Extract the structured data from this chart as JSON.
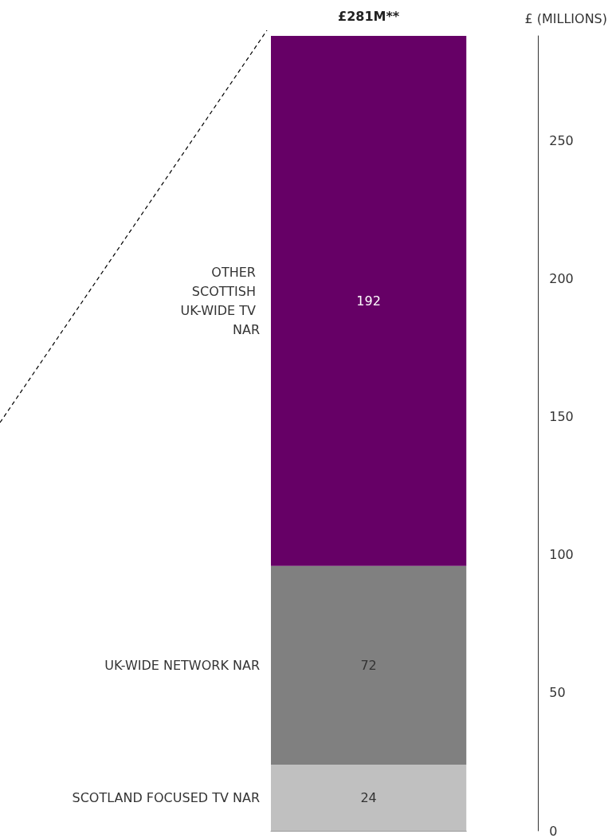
{
  "chart_data": {
    "type": "bar",
    "stacked": true,
    "categories": [
      null
    ],
    "series": [
      {
        "name": "SCOTLAND FOCUSED TV NAR",
        "color": "#c0c0c0",
        "values": [
          24
        ],
        "value_labels": [
          "24"
        ]
      },
      {
        "name": "UK-WIDE NETWORK NAR",
        "color": "#808080",
        "values": [
          72
        ],
        "value_labels": [
          "72"
        ]
      },
      {
        "name": "OTHER SCOTTISH UK-WIDE TV NAR",
        "color": "#660066",
        "values": [
          192
        ],
        "value_labels": [
          "192"
        ]
      }
    ],
    "annotations": [
      "£281M**"
    ],
    "ylabel": "£ (MILLIONS)",
    "ylim": [
      0,
      288
    ],
    "yticks": [
      0,
      50,
      100,
      150,
      200,
      250
    ],
    "grid": false,
    "legend": false
  }
}
